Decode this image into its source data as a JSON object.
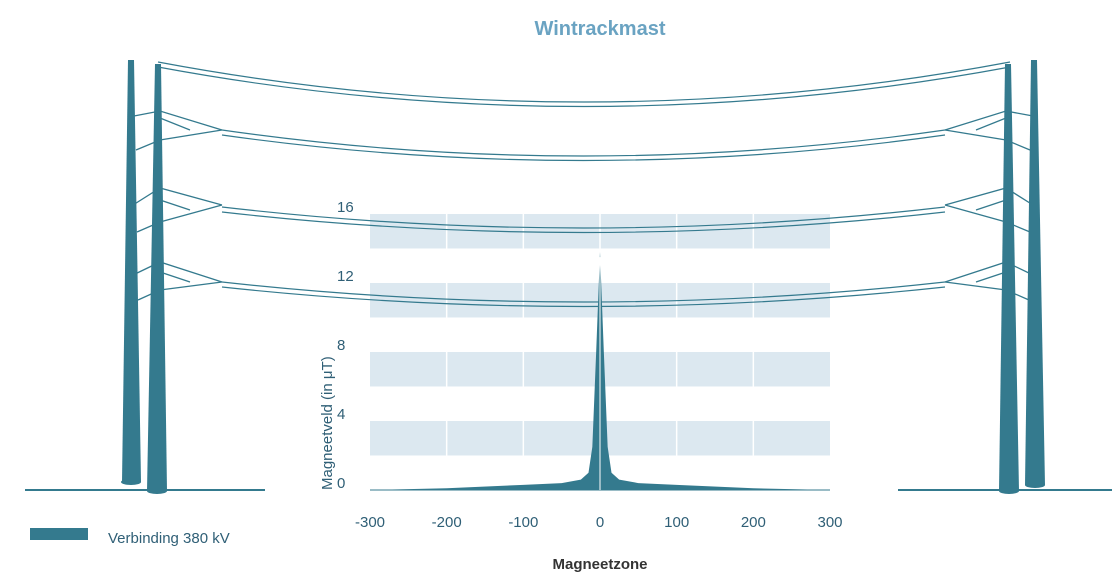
{
  "chart_data": {
    "type": "area",
    "title": "Wintrackmast",
    "xlabel": "Magneetzone",
    "ylabel": "Magneetveld (in μT)",
    "x_ticks": [
      "-300",
      "-200",
      "-100",
      "0",
      "100",
      "200",
      "300"
    ],
    "y_ticks": [
      "0",
      "4",
      "8",
      "12",
      "16"
    ],
    "xlim": [
      -300,
      300
    ],
    "ylim": [
      0,
      16
    ],
    "grid": "alternating horizontal bands",
    "series": [
      {
        "name": "Verbinding 380 kV",
        "color": "#347a8e",
        "x": [
          -300,
          -200,
          -100,
          -50,
          -25,
          -15,
          -10,
          -5,
          0,
          5,
          10,
          15,
          25,
          50,
          100,
          200,
          300
        ],
        "values": [
          0.0,
          0.1,
          0.3,
          0.4,
          0.6,
          1.0,
          2.5,
          8.0,
          13.8,
          8.0,
          2.5,
          1.0,
          0.6,
          0.4,
          0.3,
          0.1,
          0.0
        ]
      }
    ]
  },
  "legend": {
    "label": "Verbinding 380 kV",
    "color": "#347a8e"
  },
  "colors": {
    "accent": "#347a8e",
    "title": "#6aa3c2",
    "band": "#dce8f0"
  }
}
